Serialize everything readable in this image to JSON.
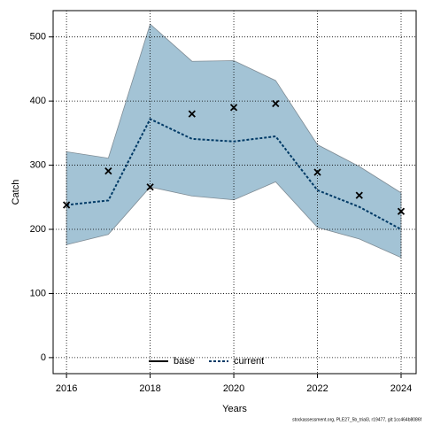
{
  "chart_data": {
    "type": "line",
    "xlabel": "Years",
    "ylabel": "Catch",
    "footer": "stockassessment.org, PLE27_5b_trial3, r19477, git:1cc464b8086f",
    "x": [
      2016,
      2017,
      2018,
      2019,
      2020,
      2021,
      2022,
      2023,
      2024
    ],
    "band": {
      "color": "#a3c3d5",
      "lower": [
        176,
        192,
        266,
        252,
        246,
        274,
        203,
        185,
        156
      ],
      "upper": [
        321,
        311,
        520,
        462,
        463,
        432,
        332,
        298,
        257
      ]
    },
    "series": [
      {
        "name": "base",
        "color": "#000000",
        "values": [
          null,
          null,
          null,
          null,
          null,
          null,
          null,
          null,
          null
        ]
      },
      {
        "name": "current",
        "color": "#003a66",
        "values": [
          238,
          245,
          372,
          341,
          337,
          345,
          261,
          235,
          200
        ]
      }
    ],
    "points": {
      "color": "#000000",
      "values": [
        238,
        291,
        266,
        380,
        390,
        396,
        289,
        253,
        228
      ]
    },
    "xlim": [
      2015.68,
      2024.36
    ],
    "xticks": [
      2016,
      2018,
      2020,
      2022,
      2024
    ],
    "ylim": [
      -25,
      541
    ],
    "yticks": [
      0,
      100,
      200,
      300,
      400,
      500
    ],
    "grid": true,
    "legend": "bottom"
  }
}
